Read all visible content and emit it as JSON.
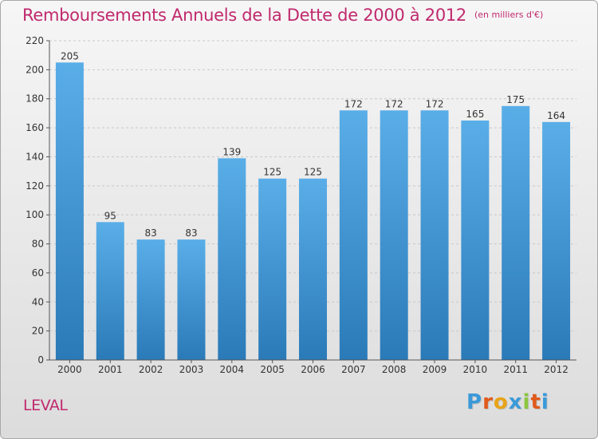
{
  "title": "Remboursements Annuels de la Dette de 2000 à 2012",
  "unit_note": "(en milliers d'€)",
  "location": "LEVAL",
  "logo_text": "Proxiti",
  "colors": {
    "title": "#c0296d",
    "bar_top": "#5aaee8",
    "bar_bottom": "#2a7ab8",
    "logo": [
      "#3a9ad9",
      "#e05a1c",
      "#e8a317",
      "#3a9ad9",
      "#8cc63f",
      "#e05a1c",
      "#3a9ad9"
    ]
  },
  "chart_data": {
    "type": "bar",
    "title": "Remboursements Annuels de la Dette de 2000 à 2012",
    "subtitle": "(en milliers d'€)",
    "categories": [
      "2000",
      "2001",
      "2002",
      "2003",
      "2004",
      "2005",
      "2006",
      "2007",
      "2008",
      "2009",
      "2010",
      "2011",
      "2012"
    ],
    "values": [
      205,
      95,
      83,
      83,
      139,
      125,
      125,
      172,
      172,
      172,
      165,
      175,
      164
    ],
    "ylim": [
      0,
      220
    ],
    "yticks": [
      0,
      20,
      40,
      60,
      80,
      100,
      120,
      140,
      160,
      180,
      200,
      220
    ],
    "grid": true,
    "data_labels": true
  }
}
